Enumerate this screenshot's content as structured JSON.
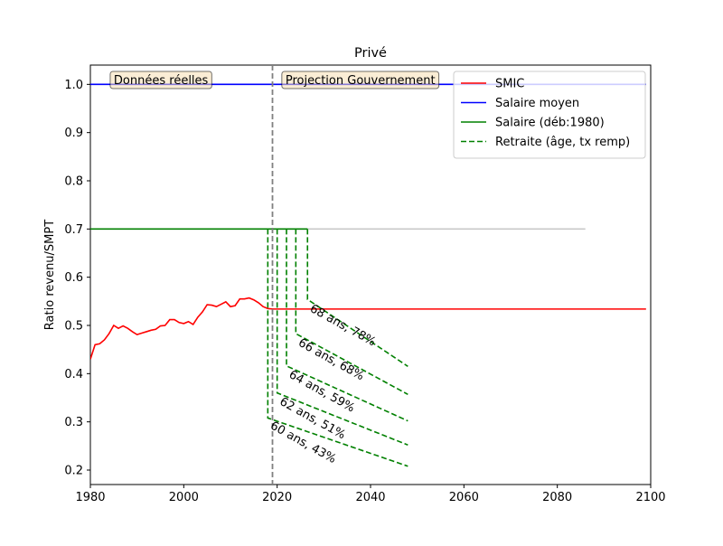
{
  "chart_data": {
    "type": "line",
    "title": "Privé",
    "xlabel": "",
    "ylabel": "Ratio revenu/SMPT",
    "xlim": [
      1980,
      2100
    ],
    "ylim": [
      0.17,
      1.04
    ],
    "xticks": [
      1980,
      2000,
      2020,
      2040,
      2060,
      2080,
      2100
    ],
    "yticks": [
      0.2,
      0.3,
      0.4,
      0.5,
      0.6,
      0.7,
      0.8,
      0.9,
      1.0
    ],
    "grid": false,
    "legend_position": "top-right",
    "vline_year": 2019,
    "annotations": [
      {
        "text": "Données réelles",
        "x": 2006,
        "y": 1.01,
        "anchor": "end"
      },
      {
        "text": "Projection Gouvernement",
        "x": 2021,
        "y": 1.01,
        "anchor": "start"
      }
    ],
    "series": [
      {
        "name": "SMIC",
        "color": "#ff0000",
        "style": "solid",
        "points": [
          [
            1980,
            0.43
          ],
          [
            1981,
            0.46
          ],
          [
            1982,
            0.462
          ],
          [
            1983,
            0.47
          ],
          [
            1984,
            0.483
          ],
          [
            1985,
            0.5
          ],
          [
            1986,
            0.494
          ],
          [
            1987,
            0.499
          ],
          [
            1988,
            0.494
          ],
          [
            1989,
            0.487
          ],
          [
            1990,
            0.481
          ],
          [
            1991,
            0.484
          ],
          [
            1992,
            0.487
          ],
          [
            1993,
            0.49
          ],
          [
            1994,
            0.492
          ],
          [
            1995,
            0.499
          ],
          [
            1996,
            0.5
          ],
          [
            1997,
            0.512
          ],
          [
            1998,
            0.512
          ],
          [
            1999,
            0.506
          ],
          [
            2000,
            0.504
          ],
          [
            2001,
            0.508
          ],
          [
            2002,
            0.502
          ],
          [
            2003,
            0.517
          ],
          [
            2004,
            0.528
          ],
          [
            2005,
            0.543
          ],
          [
            2006,
            0.542
          ],
          [
            2007,
            0.539
          ],
          [
            2008,
            0.544
          ],
          [
            2009,
            0.549
          ],
          [
            2010,
            0.539
          ],
          [
            2011,
            0.541
          ],
          [
            2012,
            0.555
          ],
          [
            2013,
            0.555
          ],
          [
            2014,
            0.557
          ],
          [
            2015,
            0.553
          ],
          [
            2016,
            0.547
          ],
          [
            2017,
            0.539
          ],
          [
            2018,
            0.535
          ],
          [
            2019,
            0.534
          ],
          [
            2099,
            0.534
          ]
        ]
      },
      {
        "name": "Salaire moyen",
        "color": "#0000ff",
        "style": "solid",
        "points": [
          [
            1980,
            1.0
          ],
          [
            2099,
            1.0
          ]
        ]
      },
      {
        "name": "Salaire (déb:1980)",
        "color": "#008000",
        "style": "solid",
        "points": [
          [
            1980,
            0.7
          ],
          [
            2026.5,
            0.7
          ]
        ]
      },
      {
        "name": "",
        "color": "#c8c8c8",
        "style": "solid",
        "points": [
          [
            2019,
            0.7
          ],
          [
            2086,
            0.7
          ]
        ]
      },
      {
        "name": "Retraite (âge, tx remp)",
        "color": "#008000",
        "style": "dashed",
        "points": [
          [
            2018,
            0.7
          ],
          [
            2018,
            0.308
          ],
          [
            2048,
            0.208
          ]
        ]
      },
      {
        "name": "",
        "color": "#008000",
        "style": "dashed",
        "points": [
          [
            2020,
            0.7
          ],
          [
            2020,
            0.36
          ],
          [
            2048,
            0.252
          ]
        ]
      },
      {
        "name": "",
        "color": "#008000",
        "style": "dashed",
        "points": [
          [
            2022,
            0.7
          ],
          [
            2022,
            0.416
          ],
          [
            2048,
            0.302
          ]
        ]
      },
      {
        "name": "",
        "color": "#008000",
        "style": "dashed",
        "points": [
          [
            2024,
            0.7
          ],
          [
            2024,
            0.483
          ],
          [
            2048,
            0.357
          ]
        ]
      },
      {
        "name": "",
        "color": "#008000",
        "style": "dashed",
        "points": [
          [
            2026.5,
            0.7
          ],
          [
            2026.5,
            0.554
          ],
          [
            2048,
            0.415
          ]
        ]
      }
    ],
    "line_labels": [
      {
        "text": "60 ans, 43%",
        "x": 2019.2,
        "y": 0.302
      },
      {
        "text": "62 ans, 51%",
        "x": 2021.2,
        "y": 0.352
      },
      {
        "text": "64 ans, 59%",
        "x": 2023.2,
        "y": 0.408
      },
      {
        "text": "66 ans, 68%",
        "x": 2025.2,
        "y": 0.474
      },
      {
        "text": "68 ans, 78%",
        "x": 2027.7,
        "y": 0.545
      }
    ]
  }
}
